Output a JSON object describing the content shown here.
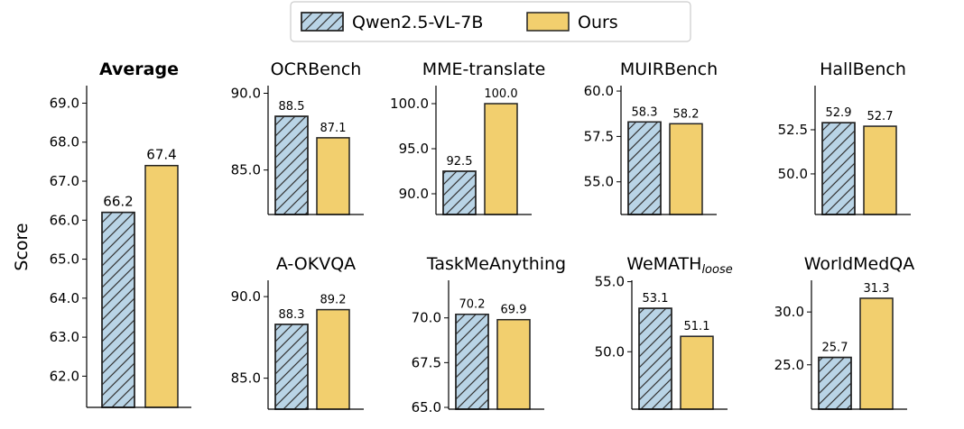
{
  "chart_data": [
    {
      "type": "bar",
      "title": "Average",
      "title_bold": true,
      "ylabel": "Score",
      "categories": [
        "Qwen2.5-VL-7B",
        "Ours"
      ],
      "values": [
        66.2,
        67.4
      ],
      "ylim": [
        61.2,
        69.45
      ],
      "yticks": [
        "62.0",
        "63.0",
        "64.0",
        "65.0",
        "66.0",
        "67.0",
        "68.0",
        "69.0"
      ]
    },
    {
      "type": "bar",
      "title": "OCRBench",
      "categories": [
        "Qwen2.5-VL-7B",
        "Ours"
      ],
      "values": [
        88.5,
        87.1
      ],
      "ylim": [
        82.1,
        90.5
      ],
      "yticks": [
        "85.0",
        "90.0"
      ]
    },
    {
      "type": "bar",
      "title": "MME-translate",
      "categories": [
        "Qwen2.5-VL-7B",
        "Ours"
      ],
      "values": [
        92.5,
        100.0
      ],
      "ylim": [
        87.7,
        102.0
      ],
      "yticks": [
        "90.0",
        "95.0",
        "100.0"
      ]
    },
    {
      "type": "bar",
      "title": "MUIRBench",
      "categories": [
        "Qwen2.5-VL-7B",
        "Ours"
      ],
      "values": [
        58.3,
        58.2
      ],
      "ylim": [
        53.2,
        60.3
      ],
      "yticks": [
        "55.0",
        "57.5",
        "60.0"
      ]
    },
    {
      "type": "bar",
      "title": "HallBench",
      "categories": [
        "Qwen2.5-VL-7B",
        "Ours"
      ],
      "values": [
        52.9,
        52.7
      ],
      "ylim": [
        47.7,
        55.0
      ],
      "yticks": [
        "50.0",
        "52.5"
      ]
    },
    {
      "type": "bar",
      "title": "A-OKVQA",
      "categories": [
        "Qwen2.5-VL-7B",
        "Ours"
      ],
      "values": [
        88.3,
        89.2
      ],
      "ylim": [
        83.1,
        91.0
      ],
      "yticks": [
        "85.0",
        "90.0"
      ]
    },
    {
      "type": "bar",
      "title": "TaskMeAnything",
      "categories": [
        "Qwen2.5-VL-7B",
        "Ours"
      ],
      "values": [
        70.2,
        69.9
      ],
      "ylim": [
        64.9,
        72.1
      ],
      "yticks": [
        "65.0",
        "67.5",
        "70.0"
      ]
    },
    {
      "type": "bar",
      "title": "WeMATH",
      "title_sub": "loose",
      "categories": [
        "Qwen2.5-VL-7B",
        "Ours"
      ],
      "values": [
        53.1,
        51.1
      ],
      "ylim": [
        45.9,
        55.1
      ],
      "yticks": [
        "50.0",
        "55.0"
      ]
    },
    {
      "type": "bar",
      "title": "WorldMedQA",
      "categories": [
        "Qwen2.5-VL-7B",
        "Ours"
      ],
      "values": [
        25.7,
        31.3
      ],
      "ylim": [
        20.8,
        33.0
      ],
      "yticks": [
        "25.0",
        "30.0"
      ]
    }
  ],
  "legend": {
    "placement": "top-center",
    "items": [
      {
        "label": "Qwen2.5-VL-7B",
        "color": "#b9d4e6",
        "hatch": true
      },
      {
        "label": "Ours",
        "color": "#f2cf6e",
        "hatch": false
      }
    ]
  },
  "colors": {
    "baseline": "#b9d4e6",
    "ours": "#f2cf6e",
    "edge": "#222222"
  }
}
